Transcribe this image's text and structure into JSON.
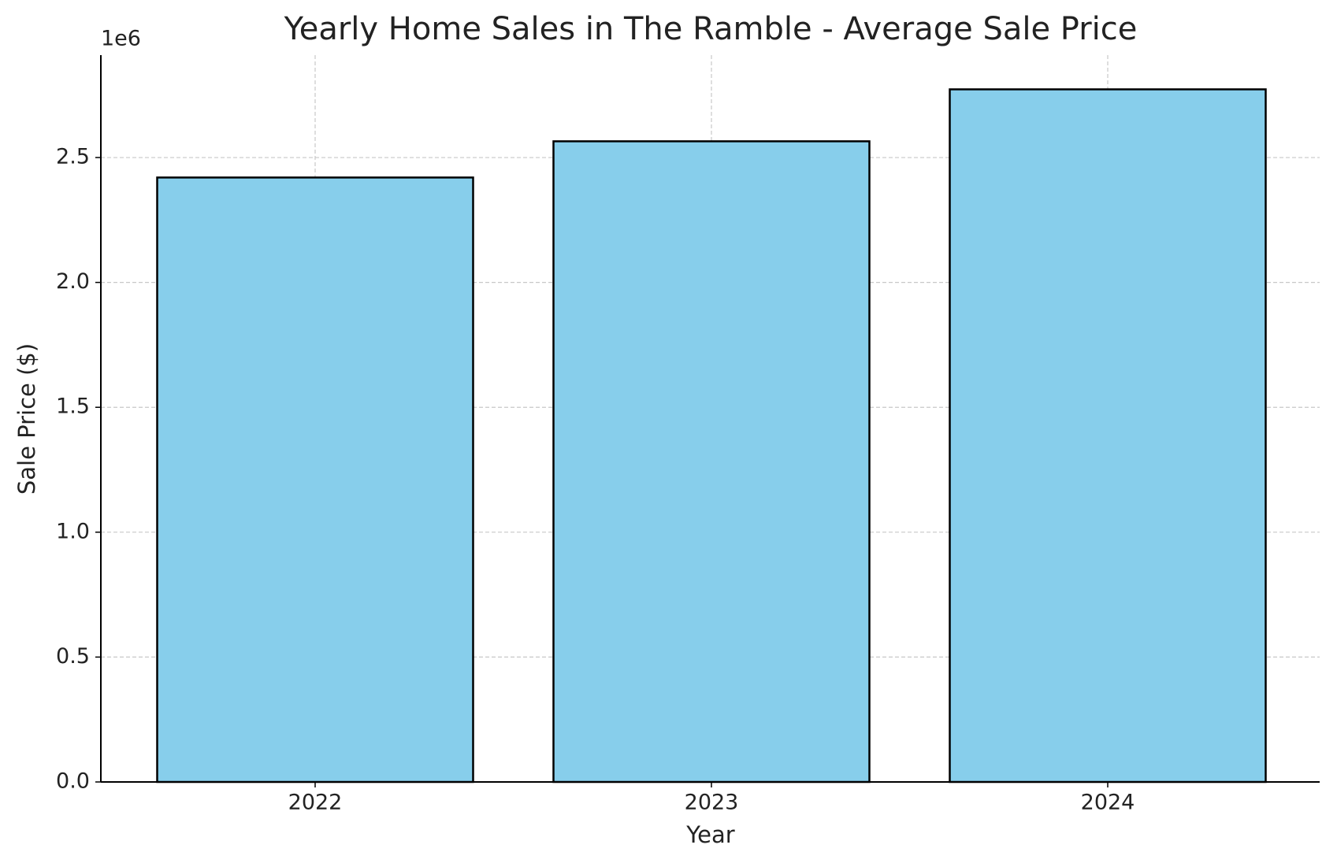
{
  "chart_data": {
    "type": "bar",
    "title": "Yearly Home Sales in The Ramble - Average Sale Price",
    "x_label": "Year",
    "y_label": "Sale Price ($)",
    "y_offset_label": "1e6",
    "categories": [
      "2022",
      "2023",
      "2024"
    ],
    "values": [
      2420000,
      2565000,
      2773000
    ],
    "color": "#87ceeb",
    "edge_color": "#000000",
    "ylim": [
      0,
      2910000
    ],
    "yticks": [
      {
        "value": 0,
        "label": "0.0"
      },
      {
        "value": 500000,
        "label": "0.5"
      },
      {
        "value": 1000000,
        "label": "1.0"
      },
      {
        "value": 1500000,
        "label": "1.5"
      },
      {
        "value": 2000000,
        "label": "2.0"
      },
      {
        "value": 2500000,
        "label": "2.5"
      }
    ],
    "grid": true
  }
}
